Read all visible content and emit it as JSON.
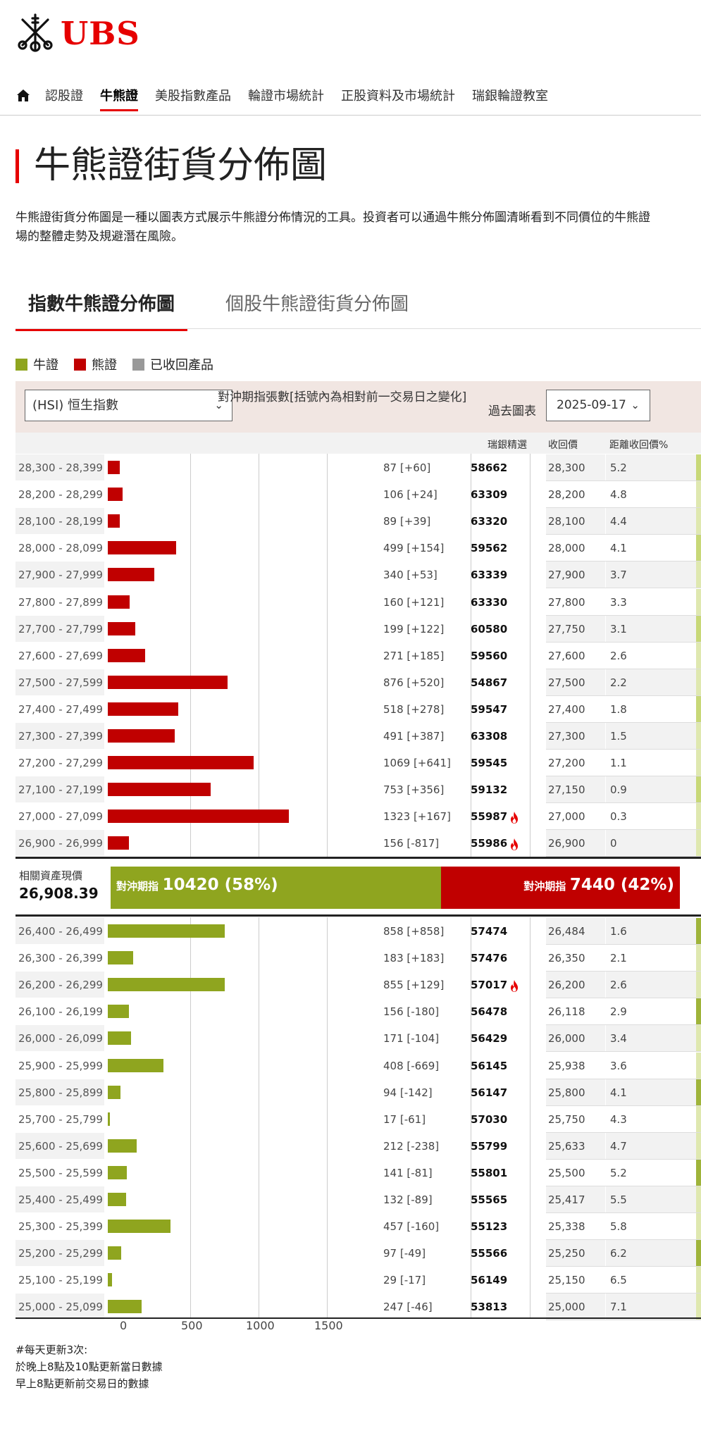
{
  "brand": {
    "logo_text": "UBS",
    "accent": "#e60000"
  },
  "nav": {
    "home_icon": "home-icon",
    "items": [
      {
        "label": "認股證",
        "active": false
      },
      {
        "label": "牛熊證",
        "active": true
      },
      {
        "label": "美股指數產品",
        "active": false
      },
      {
        "label": "輪證市場統計",
        "active": false
      },
      {
        "label": "正股資料及市場統計",
        "active": false
      },
      {
        "label": "瑞銀輪證教室",
        "active": false
      }
    ]
  },
  "page": {
    "title": "牛熊證街貨分佈圖",
    "description_line1": "牛熊證街貨分佈圖是一種以圖表方式展示牛熊證分佈情況的工具。投資者可以通過牛熊分佈圖清晰看到不同價位的牛熊證",
    "description_line2": "場的整體走勢及規避潛在風險。"
  },
  "tabs": [
    {
      "label": "指數牛熊證分佈圖",
      "active": true
    },
    {
      "label": "個股牛熊證街貨分佈圖",
      "active": false
    }
  ],
  "legend": [
    {
      "label": "牛證",
      "color": "#8fa51f"
    },
    {
      "label": "熊證",
      "color": "#c00000"
    },
    {
      "label": "已收回產品",
      "color": "#999999"
    }
  ],
  "controls": {
    "underlying_select": "(HSI) 恒生指數",
    "hedge_header": "對沖期指張數[括號內為相對前一交易日之變化]",
    "past_chart_label": "過去圖表",
    "date_select": "2025-09-17"
  },
  "columns": {
    "pick": "瑞銀精選",
    "recall": "收回價",
    "distance": "距離收回價%"
  },
  "chart_data": {
    "type": "bar",
    "orientation": "horizontal",
    "xlim": [
      0,
      1500
    ],
    "x_ticks": [
      "0",
      "500",
      "1000",
      "1500"
    ],
    "bear_rows": [
      {
        "range": "28,300 - 28,399",
        "value": 87,
        "label": "87 [+60]",
        "pick": "58662",
        "hot": false,
        "recall": "28,300",
        "distance": "5.2"
      },
      {
        "range": "28,200 - 28,299",
        "value": 106,
        "label": "106 [+24]",
        "pick": "63309",
        "hot": false,
        "recall": "28,200",
        "distance": "4.8"
      },
      {
        "range": "28,100 - 28,199",
        "value": 89,
        "label": "89 [+39]",
        "pick": "63320",
        "hot": false,
        "recall": "28,100",
        "distance": "4.4"
      },
      {
        "range": "28,000 - 28,099",
        "value": 499,
        "label": "499 [+154]",
        "pick": "59562",
        "hot": false,
        "recall": "28,000",
        "distance": "4.1"
      },
      {
        "range": "27,900 - 27,999",
        "value": 340,
        "label": "340 [+53]",
        "pick": "63339",
        "hot": false,
        "recall": "27,900",
        "distance": "3.7"
      },
      {
        "range": "27,800 - 27,899",
        "value": 160,
        "label": "160 [+121]",
        "pick": "63330",
        "hot": false,
        "recall": "27,800",
        "distance": "3.3"
      },
      {
        "range": "27,700 - 27,799",
        "value": 199,
        "label": "199 [+122]",
        "pick": "60580",
        "hot": false,
        "recall": "27,750",
        "distance": "3.1"
      },
      {
        "range": "27,600 - 27,699",
        "value": 271,
        "label": "271 [+185]",
        "pick": "59560",
        "hot": false,
        "recall": "27,600",
        "distance": "2.6"
      },
      {
        "range": "27,500 - 27,599",
        "value": 876,
        "label": "876 [+520]",
        "pick": "54867",
        "hot": false,
        "recall": "27,500",
        "distance": "2.2"
      },
      {
        "range": "27,400 - 27,499",
        "value": 518,
        "label": "518 [+278]",
        "pick": "59547",
        "hot": false,
        "recall": "27,400",
        "distance": "1.8"
      },
      {
        "range": "27,300 - 27,399",
        "value": 491,
        "label": "491 [+387]",
        "pick": "63308",
        "hot": false,
        "recall": "27,300",
        "distance": "1.5"
      },
      {
        "range": "27,200 - 27,299",
        "value": 1069,
        "label": "1069 [+641]",
        "pick": "59545",
        "hot": false,
        "recall": "27,200",
        "distance": "1.1"
      },
      {
        "range": "27,100 - 27,199",
        "value": 753,
        "label": "753 [+356]",
        "pick": "59132",
        "hot": false,
        "recall": "27,150",
        "distance": "0.9"
      },
      {
        "range": "27,000 - 27,099",
        "value": 1323,
        "label": "1323 [+167]",
        "pick": "55987",
        "hot": true,
        "recall": "27,000",
        "distance": "0.3"
      },
      {
        "range": "26,900 - 26,999",
        "value": 156,
        "label": "156 [-817]",
        "pick": "55986",
        "hot": true,
        "recall": "26,900",
        "distance": "0"
      }
    ],
    "bull_rows": [
      {
        "range": "26,400 - 26,499",
        "value": 858,
        "label": "858 [+858]",
        "pick": "57474",
        "hot": false,
        "recall": "26,484",
        "distance": "1.6"
      },
      {
        "range": "26,300 - 26,399",
        "value": 183,
        "label": "183 [+183]",
        "pick": "57476",
        "hot": false,
        "recall": "26,350",
        "distance": "2.1"
      },
      {
        "range": "26,200 - 26,299",
        "value": 855,
        "label": "855 [+129]",
        "pick": "57017",
        "hot": true,
        "recall": "26,200",
        "distance": "2.6"
      },
      {
        "range": "26,100 - 26,199",
        "value": 156,
        "label": "156 [-180]",
        "pick": "56478",
        "hot": false,
        "recall": "26,118",
        "distance": "2.9"
      },
      {
        "range": "26,000 - 26,099",
        "value": 171,
        "label": "171 [-104]",
        "pick": "56429",
        "hot": false,
        "recall": "26,000",
        "distance": "3.4"
      },
      {
        "range": "25,900 - 25,999",
        "value": 408,
        "label": "408 [-669]",
        "pick": "56145",
        "hot": false,
        "recall": "25,938",
        "distance": "3.6"
      },
      {
        "range": "25,800 - 25,899",
        "value": 94,
        "label": "94 [-142]",
        "pick": "56147",
        "hot": false,
        "recall": "25,800",
        "distance": "4.1"
      },
      {
        "range": "25,700 - 25,799",
        "value": 17,
        "label": "17 [-61]",
        "pick": "57030",
        "hot": false,
        "recall": "25,750",
        "distance": "4.3"
      },
      {
        "range": "25,600 - 25,699",
        "value": 212,
        "label": "212 [-238]",
        "pick": "55799",
        "hot": false,
        "recall": "25,633",
        "distance": "4.7"
      },
      {
        "range": "25,500 - 25,599",
        "value": 141,
        "label": "141 [-81]",
        "pick": "55801",
        "hot": false,
        "recall": "25,500",
        "distance": "5.2"
      },
      {
        "range": "25,400 - 25,499",
        "value": 132,
        "label": "132 [-89]",
        "pick": "55565",
        "hot": false,
        "recall": "25,417",
        "distance": "5.5"
      },
      {
        "range": "25,300 - 25,399",
        "value": 457,
        "label": "457 [-160]",
        "pick": "55123",
        "hot": false,
        "recall": "25,338",
        "distance": "5.8"
      },
      {
        "range": "25,200 - 25,299",
        "value": 97,
        "label": "97 [-49]",
        "pick": "55566",
        "hot": false,
        "recall": "25,250",
        "distance": "6.2"
      },
      {
        "range": "25,100 - 25,199",
        "value": 29,
        "label": "29 [-17]",
        "pick": "56149",
        "hot": false,
        "recall": "25,150",
        "distance": "6.5"
      },
      {
        "range": "25,000 - 25,099",
        "value": 247,
        "label": "247 [-46]",
        "pick": "53813",
        "hot": false,
        "recall": "25,000",
        "distance": "7.1"
      }
    ]
  },
  "summary": {
    "asset_label": "相關資產現價",
    "asset_value": "26,908.39",
    "bull_prefix": "對沖期指",
    "bull_value": "10420 (58%)",
    "bull_pct": 58,
    "bear_prefix": "對沖期指",
    "bear_value": "7440 (42%)",
    "bear_pct": 42
  },
  "notes": {
    "line1": "#每天更新3次:",
    "line2": "於晚上8點及10點更新當日數據",
    "line3": "早上8點更新前交易日的數據"
  }
}
